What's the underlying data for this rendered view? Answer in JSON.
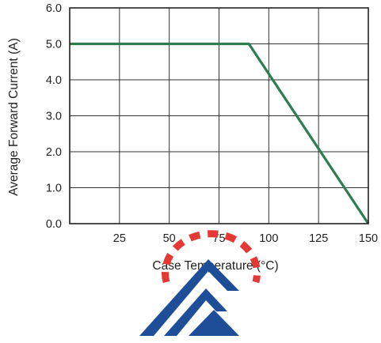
{
  "chart_data": {
    "type": "line",
    "title": "",
    "xlabel": "Case Temperature (°C)",
    "ylabel": "Average Forward Current (A)",
    "xlim": [
      0,
      150
    ],
    "ylim": [
      0,
      6.0
    ],
    "x_ticks": [
      25,
      50,
      75,
      100,
      125,
      150
    ],
    "x_tick_labels": [
      "25",
      "50",
      "75",
      "100",
      "125",
      "150"
    ],
    "y_ticks": [
      0,
      1,
      2,
      3,
      4,
      5,
      6
    ],
    "y_tick_labels": [
      "0.0",
      "1.0",
      "2.0",
      "3.0",
      "4.0",
      "5.0",
      "6.0"
    ],
    "grid": true,
    "series": [
      {
        "color": "#2e7d4f",
        "x": [
          0,
          90,
          150
        ],
        "y": [
          5.0,
          5.0,
          0.0
        ]
      }
    ]
  },
  "colors": {
    "line": "#2e7d4f",
    "grid": "#333333",
    "watermark_blue": "#1f4e99",
    "watermark_red": "#e53935"
  }
}
